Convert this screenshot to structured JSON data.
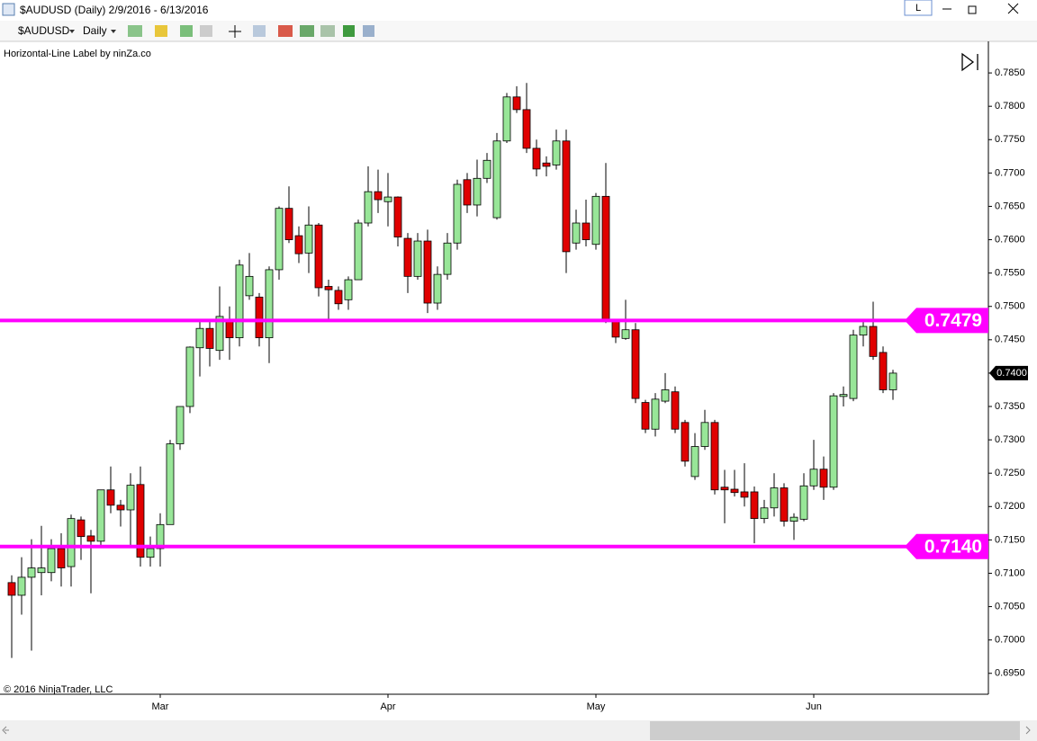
{
  "window": {
    "title": "$AUDUSD (Daily) 2/9/2016 - 6/13/2016",
    "layout_button": "L"
  },
  "toolbar": {
    "symbol": "$AUDUSD",
    "interval": "Daily"
  },
  "chart_data": {
    "type": "candlestick",
    "indicator_label": "Horizontal-Line Label by ninZa.co",
    "copyright": "© 2016 NinjaTrader, LLC",
    "categories": [
      null,
      null,
      null,
      null,
      null,
      null,
      null,
      null,
      null,
      null,
      null,
      null,
      null,
      null,
      null,
      "Mar",
      null,
      null,
      null,
      null,
      null,
      null,
      null,
      null,
      null,
      null,
      null,
      null,
      null,
      null,
      null,
      null,
      null,
      null,
      null,
      null,
      null,
      null,
      "Apr",
      null,
      null,
      null,
      null,
      null,
      null,
      null,
      null,
      null,
      null,
      null,
      null,
      null,
      null,
      null,
      null,
      null,
      null,
      null,
      null,
      "May",
      null,
      null,
      null,
      null,
      null,
      null,
      null,
      null,
      null,
      null,
      null,
      null,
      null,
      null,
      null,
      null,
      null,
      null,
      null,
      null,
      null,
      "Jun",
      null,
      null,
      null,
      null,
      null,
      null,
      null,
      null
    ],
    "open": [
      0.7086,
      0.7067,
      0.7094,
      0.7101,
      0.7101,
      0.7137,
      0.711,
      0.718,
      0.7156,
      0.7148,
      0.7225,
      0.7202,
      0.7195,
      0.7233,
      0.7124,
      0.7137,
      0.7173,
      0.7294,
      0.735,
      0.7438,
      0.7467,
      0.7434,
      0.7478,
      0.7453,
      0.7516,
      0.7514,
      0.7453,
      0.7555,
      0.7647,
      0.7606,
      0.758,
      0.7622,
      0.753,
      0.7524,
      0.751,
      0.754,
      0.7625,
      0.7672,
      0.7657,
      0.7664,
      0.7602,
      0.7545,
      0.7598,
      0.7505,
      0.7548,
      0.7595,
      0.769,
      0.7652,
      0.7692,
      0.7633,
      0.7748,
      0.7814,
      0.7795,
      0.7737,
      0.7715,
      0.7712,
      0.7748,
      0.7595,
      0.7625,
      0.7593,
      0.7665,
      0.7478,
      0.7452,
      0.7465,
      0.7356,
      0.7316,
      0.7358,
      0.7372,
      0.7326,
      0.7245,
      0.729,
      0.7326,
      0.7229,
      0.7226,
      0.7222,
      0.7222,
      0.7182,
      0.7198,
      0.7228,
      0.7178,
      0.7181,
      0.7231,
      0.7256,
      0.7229,
      0.7365,
      0.7362,
      0.7457,
      0.747,
      0.7431,
      0.7375
    ],
    "high": [
      0.7097,
      0.7124,
      0.7151,
      0.7171,
      0.7151,
      0.716,
      0.7188,
      0.7185,
      0.7165,
      0.7225,
      0.726,
      0.721,
      0.725,
      0.726,
      0.7155,
      0.719,
      0.73,
      0.735,
      0.744,
      0.748,
      0.748,
      0.753,
      0.75,
      0.757,
      0.758,
      0.752,
      0.756,
      0.765,
      0.768,
      0.762,
      0.765,
      0.7625,
      0.754,
      0.753,
      0.7545,
      0.763,
      0.771,
      0.7705,
      0.77,
      0.7665,
      0.761,
      0.761,
      0.7615,
      0.756,
      0.761,
      0.769,
      0.77,
      0.772,
      0.773,
      0.776,
      0.782,
      0.783,
      0.7835,
      0.775,
      0.7725,
      0.7765,
      0.7765,
      0.7645,
      0.766,
      0.767,
      0.7715,
      0.748,
      0.751,
      0.7475,
      0.736,
      0.737,
      0.74,
      0.738,
      0.733,
      0.731,
      0.7345,
      0.733,
      0.7255,
      0.7255,
      0.7265,
      0.723,
      0.721,
      0.725,
      0.7235,
      0.719,
      0.725,
      0.73,
      0.7275,
      0.737,
      0.738,
      0.7465,
      0.748,
      0.7507,
      0.744,
      0.7405
    ],
    "low": [
      0.6973,
      0.7038,
      0.6984,
      0.7067,
      0.7088,
      0.708,
      0.708,
      0.712,
      0.707,
      0.714,
      0.719,
      0.717,
      0.714,
      0.711,
      0.711,
      0.711,
      0.7173,
      0.7285,
      0.734,
      0.7395,
      0.741,
      0.742,
      0.742,
      0.744,
      0.751,
      0.744,
      0.7415,
      0.754,
      0.7595,
      0.7565,
      0.755,
      0.7515,
      0.748,
      0.7495,
      0.7495,
      0.754,
      0.762,
      0.764,
      0.762,
      0.759,
      0.752,
      0.754,
      0.749,
      0.7495,
      0.754,
      0.7585,
      0.764,
      0.7635,
      0.7685,
      0.763,
      0.7745,
      0.779,
      0.773,
      0.7695,
      0.7695,
      0.7705,
      0.755,
      0.7585,
      0.759,
      0.7585,
      0.7475,
      0.7445,
      0.745,
      0.7355,
      0.731,
      0.7305,
      0.7355,
      0.731,
      0.726,
      0.724,
      0.7285,
      0.7218,
      0.7175,
      0.7215,
      0.72,
      0.7145,
      0.7175,
      0.7185,
      0.717,
      0.715,
      0.7178,
      0.7225,
      0.721,
      0.7225,
      0.735,
      0.7358,
      0.744,
      0.742,
      0.737,
      0.736
    ],
    "close": [
      0.7067,
      0.7094,
      0.7108,
      0.7108,
      0.7137,
      0.7108,
      0.7182,
      0.7155,
      0.7148,
      0.7225,
      0.7202,
      0.7195,
      0.7232,
      0.7124,
      0.7137,
      0.7173,
      0.7294,
      0.735,
      0.7439,
      0.7467,
      0.7437,
      0.7485,
      0.7453,
      0.7562,
      0.7545,
      0.7453,
      0.7555,
      0.7647,
      0.76,
      0.7579,
      0.7622,
      0.7528,
      0.7525,
      0.7504,
      0.754,
      0.7625,
      0.7672,
      0.766,
      0.7664,
      0.7604,
      0.7545,
      0.7598,
      0.7505,
      0.7548,
      0.7595,
      0.7683,
      0.7652,
      0.7692,
      0.7719,
      0.7748,
      0.7814,
      0.7795,
      0.7737,
      0.7706,
      0.771,
      0.7748,
      0.7582,
      0.7625,
      0.76,
      0.7665,
      0.7481,
      0.7454,
      0.7465,
      0.7362,
      0.7316,
      0.7361,
      0.7375,
      0.7316,
      0.7268,
      0.729,
      0.7326,
      0.7225,
      0.7225,
      0.7221,
      0.7214,
      0.7182,
      0.7198,
      0.7228,
      0.7178,
      0.7184,
      0.7231,
      0.7256,
      0.7229,
      0.7366,
      0.7368,
      0.7457,
      0.747,
      0.7425,
      0.7375,
      0.74
    ],
    "up_color": "#98e698",
    "down_color": "#e00000",
    "ylim": [
      0.692,
      0.79
    ],
    "yticks": [
      {
        "value": 0.695,
        "label": "0.6950"
      },
      {
        "value": 0.7,
        "label": "0.7000"
      },
      {
        "value": 0.705,
        "label": "0.7050"
      },
      {
        "value": 0.71,
        "label": "0.7100"
      },
      {
        "value": 0.715,
        "label": "0.7150"
      },
      {
        "value": 0.72,
        "label": "0.7200"
      },
      {
        "value": 0.725,
        "label": "0.7250"
      },
      {
        "value": 0.73,
        "label": "0.7300"
      },
      {
        "value": 0.735,
        "label": "0.7350"
      },
      {
        "value": 0.74,
        "label": "0.7400"
      },
      {
        "value": 0.745,
        "label": "0.7450"
      },
      {
        "value": 0.75,
        "label": "0.7500"
      },
      {
        "value": 0.755,
        "label": "0.7550"
      },
      {
        "value": 0.76,
        "label": "0.7600"
      },
      {
        "value": 0.765,
        "label": "0.7650"
      },
      {
        "value": 0.77,
        "label": "0.7700"
      },
      {
        "value": 0.775,
        "label": "0.7750"
      },
      {
        "value": 0.78,
        "label": "0.7800"
      },
      {
        "value": 0.785,
        "label": "0.7850"
      }
    ],
    "hlines": [
      0.7479,
      {
        "value": 0.714,
        "label": "0.7140"
      }
    ],
    "hline_color": "#ff00ff",
    "last_price": {
      "value": 0.74,
      "label": "0.7400"
    }
  }
}
